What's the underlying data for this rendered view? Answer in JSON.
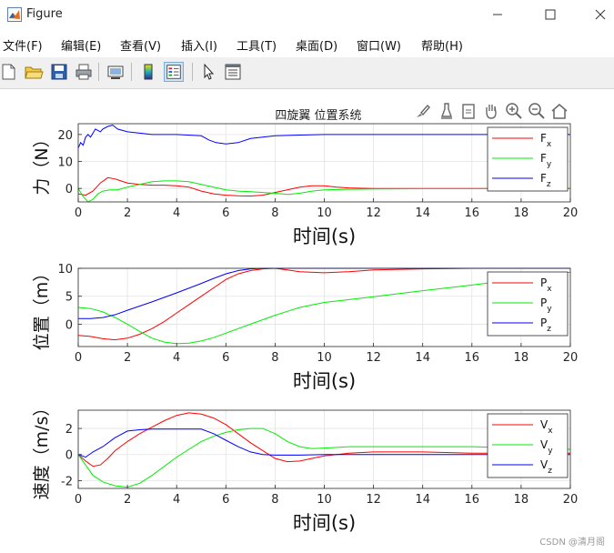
{
  "window": {
    "title": "Figure"
  },
  "menu": [
    {
      "label": "文件(F)"
    },
    {
      "label": "编辑(E)"
    },
    {
      "label": "查看(V)"
    },
    {
      "label": "插入(I)"
    },
    {
      "label": "工具(T)"
    },
    {
      "label": "桌面(D)"
    },
    {
      "label": "窗口(W)"
    },
    {
      "label": "帮助(H)"
    }
  ],
  "toolbar": [
    {
      "icon": "new-file-icon"
    },
    {
      "icon": "open-folder-icon"
    },
    {
      "icon": "save-icon"
    },
    {
      "icon": "print-icon"
    },
    {
      "icon": "link-figure-icon"
    },
    {
      "icon": "colorbar-icon"
    },
    {
      "icon": "legend-icon"
    },
    {
      "icon": "pointer-icon"
    },
    {
      "icon": "property-editor-icon"
    }
  ],
  "figure": {
    "title": "四旋翼 位置系统"
  },
  "axes_toolbar": [
    {
      "icon": "brush-icon"
    },
    {
      "icon": "data-tips-icon"
    },
    {
      "icon": "export-icon"
    },
    {
      "icon": "pan-icon"
    },
    {
      "icon": "zoom-in-icon"
    },
    {
      "icon": "zoom-out-icon"
    },
    {
      "icon": "home-icon"
    }
  ],
  "colors": {
    "x": "#ff0000",
    "y": "#00ee00",
    "z": "#0000ff"
  },
  "watermark": "CSDN @清月阁",
  "chart_data": [
    {
      "type": "line",
      "xlabel": "时间(s)",
      "ylabel": "力（N）",
      "xlim": [
        0,
        20
      ],
      "ylim": [
        -5,
        24
      ],
      "xticks": [
        0,
        2,
        4,
        6,
        8,
        10,
        12,
        14,
        16,
        18,
        20
      ],
      "yticks": [
        0,
        10,
        20
      ],
      "grid": true,
      "legend_placement": "right",
      "series": [
        {
          "name": "F",
          "sub": "x",
          "color": "#ff0000",
          "x": [
            0,
            0.3,
            0.6,
            0.9,
            1.2,
            1.5,
            2,
            2.5,
            3,
            3.5,
            4,
            4.5,
            5,
            5.5,
            6,
            6.5,
            7,
            7.5,
            8,
            8.5,
            9,
            9.5,
            10,
            10.5,
            11,
            12,
            13,
            14,
            16,
            18,
            20
          ],
          "y": [
            -2,
            -2.5,
            -1,
            2,
            4,
            3.5,
            2,
            1.5,
            1.2,
            1.2,
            1,
            0.5,
            -1,
            -2,
            -2.5,
            -2.7,
            -2.8,
            -2.5,
            -1.5,
            -0.5,
            0.5,
            1,
            1,
            0.5,
            0.2,
            0,
            0,
            0,
            0,
            0,
            0
          ]
        },
        {
          "name": "F",
          "sub": "y",
          "color": "#00ee00",
          "x": [
            0,
            0.2,
            0.4,
            0.6,
            0.8,
            1,
            1.3,
            1.6,
            2,
            2.5,
            3,
            3.5,
            4,
            4.5,
            5,
            5.5,
            6,
            6.5,
            7,
            7.5,
            8,
            8.5,
            9,
            9.5,
            10,
            11,
            12,
            14,
            16,
            18,
            20
          ],
          "y": [
            0,
            -3,
            -5,
            -4,
            -2,
            -1,
            -0.5,
            -0.5,
            0.5,
            1.5,
            2.5,
            2.8,
            2.8,
            2.5,
            1.5,
            0.5,
            -0.5,
            -1,
            -1.2,
            -1.5,
            -1.8,
            -2.2,
            -1.8,
            -1,
            -0.5,
            -0.3,
            -0.2,
            -0.1,
            -0.1,
            0,
            0
          ]
        },
        {
          "name": "F",
          "sub": "z",
          "color": "#0000ff",
          "x": [
            0,
            0.1,
            0.2,
            0.3,
            0.4,
            0.5,
            0.7,
            0.9,
            1,
            1.2,
            1.4,
            1.6,
            2,
            3,
            4,
            5,
            5.3,
            5.6,
            6,
            6.5,
            7,
            8,
            9,
            10,
            12,
            14,
            16,
            18,
            20
          ],
          "y": [
            15,
            17,
            16,
            19,
            20,
            19,
            22,
            21,
            22,
            23,
            23.5,
            22,
            21,
            20,
            20,
            19.5,
            18,
            17,
            16.5,
            17,
            18.5,
            19.5,
            19.8,
            20,
            20,
            20,
            20,
            20,
            20
          ]
        }
      ]
    },
    {
      "type": "line",
      "xlabel": "时间(s)",
      "ylabel": "位置（m）",
      "xlim": [
        0,
        20
      ],
      "ylim": [
        -4,
        10
      ],
      "xticks": [
        0,
        2,
        4,
        6,
        8,
        10,
        12,
        14,
        16,
        18,
        20
      ],
      "yticks": [
        0,
        5,
        10
      ],
      "grid": true,
      "legend_placement": "right",
      "series": [
        {
          "name": "P",
          "sub": "x",
          "color": "#ff0000",
          "x": [
            0,
            0.5,
            1,
            1.5,
            2,
            2.5,
            3,
            3.5,
            4,
            4.5,
            5,
            5.5,
            6,
            6.5,
            7,
            7.5,
            8,
            8.5,
            9,
            10,
            11,
            12,
            14,
            16,
            18,
            20
          ],
          "y": [
            -2,
            -2.2,
            -2.6,
            -2.8,
            -2.5,
            -1.8,
            -0.8,
            0.5,
            2,
            3.5,
            5,
            6.5,
            8,
            9,
            9.6,
            9.9,
            10,
            9.7,
            9.4,
            9.2,
            9.4,
            9.7,
            9.9,
            10,
            10,
            10
          ]
        },
        {
          "name": "P",
          "sub": "y",
          "color": "#00ee00",
          "x": [
            0,
            0.5,
            1,
            1.5,
            2,
            2.5,
            3,
            3.5,
            4,
            4.5,
            5,
            5.5,
            6,
            6.5,
            7,
            7.5,
            8,
            8.5,
            9,
            10,
            11,
            12,
            14,
            16,
            18,
            20
          ],
          "y": [
            3,
            2.8,
            2.2,
            1.2,
            0,
            -1.3,
            -2.5,
            -3.2,
            -3.5,
            -3.4,
            -3,
            -2.4,
            -1.6,
            -0.8,
            0,
            0.8,
            1.6,
            2.3,
            3,
            3.9,
            4.4,
            4.9,
            6,
            7,
            8.1,
            9.3
          ]
        },
        {
          "name": "P",
          "sub": "z",
          "color": "#0000ff",
          "x": [
            0,
            0.5,
            1,
            1.5,
            2,
            3,
            4,
            5,
            5.5,
            6,
            6.5,
            7,
            7.5,
            8,
            9,
            10,
            12,
            14,
            16,
            18,
            20
          ],
          "y": [
            1,
            1,
            1.2,
            1.7,
            2.5,
            4,
            5.6,
            7.3,
            8.2,
            9,
            9.6,
            9.9,
            10,
            10,
            10,
            10,
            10,
            10,
            10,
            10,
            10
          ]
        }
      ]
    },
    {
      "type": "line",
      "xlabel": "时间(s)",
      "ylabel": "速度（m/s）",
      "xlim": [
        0,
        20
      ],
      "ylim": [
        -2.6,
        3.4
      ],
      "xticks": [
        0,
        2,
        4,
        6,
        8,
        10,
        12,
        14,
        16,
        18,
        20
      ],
      "yticks": [
        -2,
        0,
        2
      ],
      "grid": true,
      "legend_placement": "right",
      "series": [
        {
          "name": "V",
          "sub": "x",
          "color": "#ff0000",
          "x": [
            0,
            0.3,
            0.6,
            0.9,
            1.2,
            1.5,
            2,
            2.5,
            3,
            3.5,
            4,
            4.5,
            5,
            5.5,
            6,
            6.5,
            7,
            7.5,
            8,
            8.5,
            9,
            9.5,
            10,
            10.5,
            11,
            12,
            14,
            16,
            18,
            20
          ],
          "y": [
            0,
            -0.5,
            -0.9,
            -0.8,
            -0.3,
            0.3,
            1,
            1.6,
            2.1,
            2.6,
            3,
            3.2,
            3.1,
            2.8,
            2.3,
            1.6,
            0.9,
            0.3,
            -0.3,
            -0.55,
            -0.5,
            -0.3,
            -0.1,
            0,
            0.1,
            0.2,
            0.2,
            0.1,
            0.1,
            0.1
          ]
        },
        {
          "name": "V",
          "sub": "y",
          "color": "#00ee00",
          "x": [
            0,
            0.3,
            0.6,
            1,
            1.5,
            2,
            2.5,
            3,
            3.5,
            4,
            4.5,
            5,
            5.5,
            6,
            6.5,
            7,
            7.5,
            8,
            8.5,
            9,
            9.5,
            10,
            11,
            12,
            14,
            16,
            18,
            20
          ],
          "y": [
            0,
            -0.8,
            -1.6,
            -2.1,
            -2.4,
            -2.5,
            -2.2,
            -1.6,
            -0.9,
            -0.2,
            0.4,
            1,
            1.4,
            1.7,
            1.9,
            2,
            2,
            1.6,
            1,
            0.6,
            0.45,
            0.5,
            0.6,
            0.6,
            0.6,
            0.6,
            0.5,
            0.4
          ]
        },
        {
          "name": "V",
          "sub": "z",
          "color": "#0000ff",
          "x": [
            0,
            0.3,
            0.6,
            1,
            1.5,
            2,
            2.5,
            3,
            4,
            5,
            5.5,
            6,
            6.5,
            7,
            7.5,
            8,
            9,
            10,
            12,
            14,
            16,
            18,
            20
          ],
          "y": [
            0,
            -0.2,
            0.2,
            0.6,
            1.3,
            1.8,
            1.9,
            1.95,
            1.95,
            1.95,
            1.6,
            1.1,
            0.6,
            0.2,
            0,
            -0.05,
            -0.05,
            0,
            0,
            0,
            0,
            0,
            0
          ]
        }
      ]
    }
  ]
}
